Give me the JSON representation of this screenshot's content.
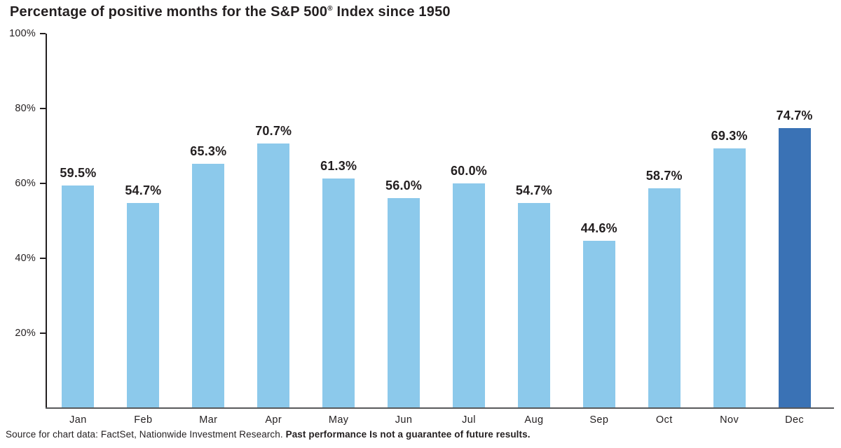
{
  "page_title": {
    "main": "Percentage of positive months for the S&P 500",
    "reg_mark": "®",
    "rest": " Index since 1950"
  },
  "source_note": {
    "regular": "Source for chart data: FactSet, Nationwide Investment Research. ",
    "bold": "Past performance Is not a guarantee of future results."
  },
  "chart_data": {
    "type": "bar",
    "title": "Percentage of positive months for the S&P 500® Index since 1950",
    "categories": [
      "Jan",
      "Feb",
      "Mar",
      "Apr",
      "May",
      "Jun",
      "Jul",
      "Aug",
      "Sep",
      "Oct",
      "Nov",
      "Dec"
    ],
    "values": [
      59.5,
      54.7,
      65.3,
      70.7,
      61.3,
      56.0,
      60.0,
      54.7,
      44.6,
      58.7,
      69.3,
      74.7
    ],
    "bar_labels": [
      "59.5%",
      "54.7%",
      "65.3%",
      "70.7%",
      "61.3%",
      "56.0%",
      "60.0%",
      "54.7%",
      "44.6%",
      "58.7%",
      "69.3%",
      "74.7%"
    ],
    "highlight_index": 11,
    "xlabel": "",
    "ylabel": "",
    "ylim": [
      0,
      100
    ],
    "yticks": [
      {
        "value": 100,
        "label": "100%"
      },
      {
        "value": 80,
        "label": "80%"
      },
      {
        "value": 60,
        "label": "60%"
      },
      {
        "value": 40,
        "label": "40%"
      },
      {
        "value": 20,
        "label": "20%"
      }
    ],
    "grid": false,
    "legend": false,
    "colors": {
      "bar": "#8CC9EB",
      "highlight_bar": "#3A72B5",
      "axis": "#231F20",
      "baseline": "#58595B",
      "text": "#231F20"
    }
  }
}
